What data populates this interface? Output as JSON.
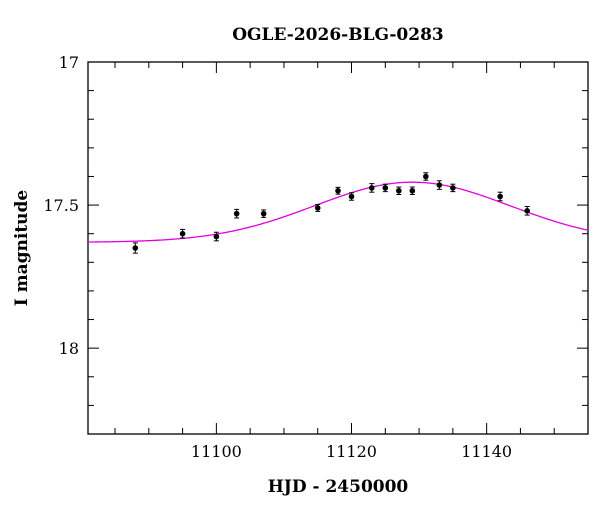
{
  "chart_data": {
    "type": "scatter",
    "title": "OGLE-2026-BLG-0283",
    "xlabel": "HJD - 2450000",
    "ylabel": "I magnitude",
    "xlim": [
      11081,
      11155
    ],
    "ylim": [
      18.3,
      17.0
    ],
    "y_inverted": true,
    "grid": false,
    "x_ticks": [
      11100,
      11120,
      11140
    ],
    "y_ticks": [
      17,
      17.5,
      18
    ],
    "x_tick_labels": [
      "11100",
      "11120",
      "11140"
    ],
    "y_tick_labels": [
      "17",
      "17.5",
      "18"
    ],
    "colors": {
      "model": "#e000e0",
      "points": "#000000",
      "axes": "#000000"
    },
    "series": [
      {
        "kind": "points",
        "x": [
          11088,
          11095,
          11100,
          11103,
          11107,
          11115,
          11118,
          11120,
          11123,
          11125,
          11127,
          11129,
          11131,
          11133,
          11135,
          11142,
          11146
        ],
        "y": [
          17.65,
          17.6,
          17.61,
          17.53,
          17.53,
          17.51,
          17.45,
          17.47,
          17.44,
          17.44,
          17.45,
          17.45,
          17.4,
          17.43,
          17.44,
          17.47,
          17.52
        ],
        "err": [
          0.018,
          0.015,
          0.015,
          0.015,
          0.013,
          0.012,
          0.012,
          0.013,
          0.015,
          0.013,
          0.013,
          0.013,
          0.013,
          0.015,
          0.013,
          0.015,
          0.015
        ]
      },
      {
        "kind": "model-curve",
        "peak_x": 11129,
        "peak_mag": 17.42,
        "baseline_mag": 17.63,
        "width": 14.5
      }
    ]
  }
}
